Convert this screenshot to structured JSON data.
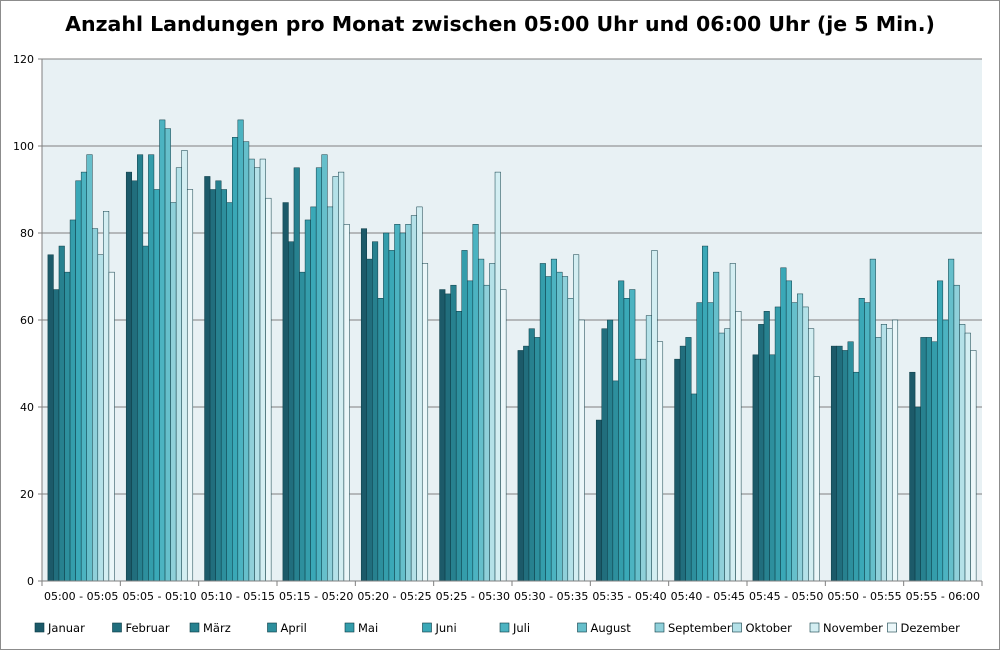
{
  "chart_data": {
    "type": "bar",
    "title": "Anzahl Landungen pro Monat zwischen 05:00 Uhr und 06:00 Uhr (je 5 Min.)",
    "xlabel": "",
    "ylabel": "",
    "ylim": [
      0,
      120
    ],
    "yticks": [
      0,
      20,
      40,
      60,
      80,
      100,
      120
    ],
    "grid": true,
    "legend_position": "bottom",
    "categories": [
      "05:00 - 05:05",
      "05:05 - 05:10",
      "05:10 - 05:15",
      "05:15 - 05:20",
      "05:20 - 05:25",
      "05:25 - 05:30",
      "05:30 - 05:35",
      "05:35 - 05:40",
      "05:40 - 05:45",
      "05:45 - 05:50",
      "05:50 - 05:55",
      "05:55 - 06:00"
    ],
    "series": [
      {
        "name": "Januar",
        "color": "#1c5a69",
        "values": [
          75,
          94,
          93,
          87,
          81,
          67,
          53,
          37,
          51,
          52,
          54,
          48
        ]
      },
      {
        "name": "Februar",
        "color": "#216e7d",
        "values": [
          67,
          92,
          90,
          78,
          74,
          66,
          54,
          58,
          54,
          59,
          54,
          40
        ]
      },
      {
        "name": "März",
        "color": "#27818f",
        "values": [
          77,
          98,
          92,
          95,
          78,
          68,
          58,
          60,
          56,
          62,
          53,
          56
        ]
      },
      {
        "name": "April",
        "color": "#2d8f9d",
        "values": [
          71,
          77,
          90,
          71,
          65,
          62,
          56,
          46,
          43,
          52,
          55,
          56
        ]
      },
      {
        "name": "Mai",
        "color": "#349dab",
        "values": [
          83,
          98,
          87,
          83,
          80,
          76,
          73,
          69,
          64,
          63,
          48,
          55
        ]
      },
      {
        "name": "Juni",
        "color": "#3aa8b7",
        "values": [
          92,
          90,
          102,
          86,
          76,
          69,
          70,
          65,
          77,
          72,
          65,
          69
        ]
      },
      {
        "name": "Juli",
        "color": "#4cb3c1",
        "values": [
          94,
          106,
          106,
          95,
          82,
          82,
          74,
          67,
          64,
          69,
          64,
          60
        ]
      },
      {
        "name": "August",
        "color": "#66bfcb",
        "values": [
          98,
          104,
          101,
          98,
          80,
          74,
          71,
          51,
          71,
          64,
          74,
          74
        ]
      },
      {
        "name": "September",
        "color": "#8fd0da",
        "values": [
          81,
          87,
          97,
          86,
          82,
          68,
          70,
          51,
          57,
          66,
          56,
          68
        ]
      },
      {
        "name": "Oktober",
        "color": "#b4e1e8",
        "values": [
          75,
          95,
          95,
          93,
          84,
          73,
          65,
          61,
          58,
          63,
          59,
          59
        ]
      },
      {
        "name": "November",
        "color": "#d3eef2",
        "values": [
          85,
          99,
          97,
          94,
          86,
          94,
          75,
          76,
          73,
          58,
          58,
          57
        ]
      },
      {
        "name": "Dezember",
        "color": "#ebf7f9",
        "values": [
          71,
          90,
          88,
          82,
          73,
          67,
          60,
          55,
          62,
          47,
          60,
          53
        ]
      }
    ]
  }
}
